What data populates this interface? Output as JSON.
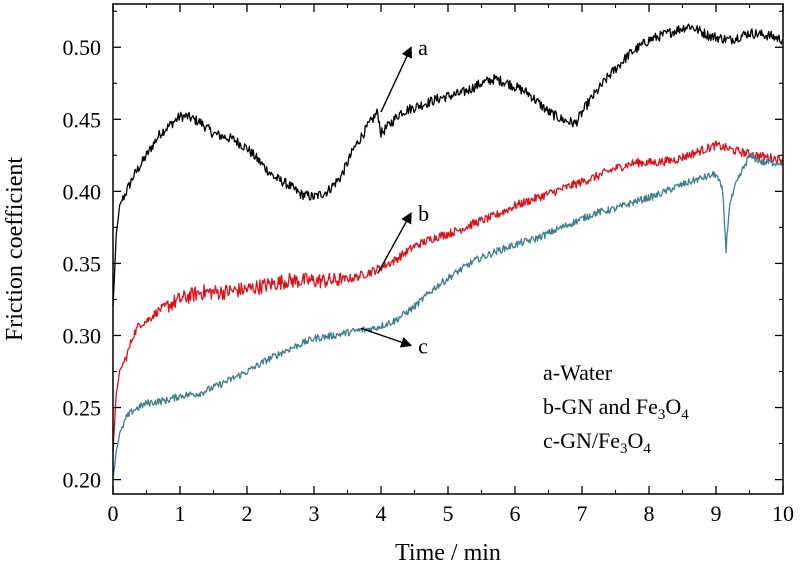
{
  "chart_data": {
    "type": "line",
    "xlabel": "Time / min",
    "ylabel": "Friction coefficient",
    "xlim": [
      0,
      10
    ],
    "ylim": [
      0.19,
      0.53
    ],
    "x_ticks": [
      "0",
      "1",
      "2",
      "3",
      "4",
      "5",
      "6",
      "7",
      "8",
      "9",
      "10"
    ],
    "y_ticks": [
      "0.20",
      "0.25",
      "0.30",
      "0.35",
      "0.40",
      "0.45",
      "0.50"
    ],
    "grid": false,
    "legend_position": "bottom-right",
    "legend": [
      {
        "prefix": "a-Water"
      },
      {
        "prefix": "b-GN and Fe",
        "sub1": "3",
        "mid": "O",
        "sub2": "4"
      },
      {
        "prefix": "c-GN/Fe",
        "sub1": "3",
        "mid": "O",
        "sub2": "4"
      }
    ],
    "series": [
      {
        "label": "a",
        "color": "#000000",
        "x": [
          0,
          0.05,
          0.1,
          0.2,
          0.3,
          0.5,
          0.7,
          0.9,
          1.0,
          1.1,
          1.3,
          1.5,
          1.8,
          2.0,
          2.2,
          2.4,
          2.6,
          2.8,
          3.0,
          3.2,
          3.4,
          3.6,
          3.8,
          3.95,
          4.0,
          4.1,
          4.3,
          4.6,
          4.9,
          5.2,
          5.5,
          5.7,
          5.9,
          6.2,
          6.5,
          6.7,
          6.9,
          7.1,
          7.4,
          7.7,
          8.0,
          8.3,
          8.6,
          8.9,
          9.2,
          9.5,
          9.8,
          10.0
        ],
        "y": [
          0.32,
          0.37,
          0.39,
          0.4,
          0.41,
          0.425,
          0.44,
          0.448,
          0.452,
          0.452,
          0.448,
          0.44,
          0.436,
          0.43,
          0.42,
          0.41,
          0.405,
          0.398,
          0.396,
          0.4,
          0.41,
          0.43,
          0.445,
          0.455,
          0.44,
          0.445,
          0.455,
          0.46,
          0.465,
          0.468,
          0.475,
          0.478,
          0.475,
          0.468,
          0.455,
          0.45,
          0.447,
          0.462,
          0.48,
          0.495,
          0.505,
          0.51,
          0.515,
          0.508,
          0.505,
          0.51,
          0.508,
          0.505
        ]
      },
      {
        "label": "b",
        "color": "#e0101a",
        "x": [
          0,
          0.05,
          0.1,
          0.2,
          0.3,
          0.4,
          0.5,
          0.7,
          1.0,
          1.3,
          1.6,
          2.0,
          2.3,
          2.6,
          3.0,
          3.3,
          3.6,
          3.9,
          4.2,
          4.5,
          4.8,
          5.1,
          5.4,
          5.7,
          6.0,
          6.3,
          6.6,
          6.9,
          7.2,
          7.5,
          7.8,
          8.1,
          8.4,
          8.7,
          9.0,
          9.3,
          9.6,
          10.0
        ],
        "y": [
          0.22,
          0.26,
          0.275,
          0.285,
          0.3,
          0.308,
          0.31,
          0.318,
          0.325,
          0.33,
          0.33,
          0.332,
          0.335,
          0.338,
          0.338,
          0.338,
          0.34,
          0.345,
          0.352,
          0.362,
          0.368,
          0.372,
          0.378,
          0.383,
          0.39,
          0.395,
          0.4,
          0.405,
          0.41,
          0.416,
          0.42,
          0.42,
          0.422,
          0.427,
          0.432,
          0.428,
          0.425,
          0.422
        ]
      },
      {
        "label": "c",
        "color": "#3f7f8c",
        "x": [
          0,
          0.05,
          0.1,
          0.2,
          0.3,
          0.5,
          0.8,
          1.0,
          1.3,
          1.6,
          2.0,
          2.3,
          2.6,
          3.0,
          3.3,
          3.6,
          3.9,
          4.2,
          4.5,
          4.8,
          5.1,
          5.4,
          5.7,
          6.0,
          6.3,
          6.6,
          6.9,
          7.2,
          7.5,
          7.8,
          8.1,
          8.4,
          8.7,
          9.0,
          9.1,
          9.15,
          9.2,
          9.3,
          9.5,
          9.7,
          10.0
        ],
        "y": [
          0.2,
          0.22,
          0.232,
          0.243,
          0.248,
          0.253,
          0.255,
          0.258,
          0.26,
          0.266,
          0.275,
          0.283,
          0.29,
          0.298,
          0.3,
          0.303,
          0.305,
          0.31,
          0.32,
          0.333,
          0.343,
          0.352,
          0.358,
          0.363,
          0.367,
          0.373,
          0.379,
          0.385,
          0.388,
          0.393,
          0.397,
          0.403,
          0.408,
          0.412,
          0.4,
          0.36,
          0.39,
          0.405,
          0.425,
          0.42,
          0.42
        ]
      }
    ],
    "annotations": [
      {
        "text": "a",
        "from": [
          4.0,
          0.455
        ],
        "to": [
          4.45,
          0.5
        ]
      },
      {
        "text": "b",
        "from": [
          3.95,
          0.343
        ],
        "to": [
          4.45,
          0.385
        ]
      },
      {
        "text": "c",
        "from": [
          3.7,
          0.305
        ],
        "to": [
          4.45,
          0.293
        ]
      }
    ]
  }
}
